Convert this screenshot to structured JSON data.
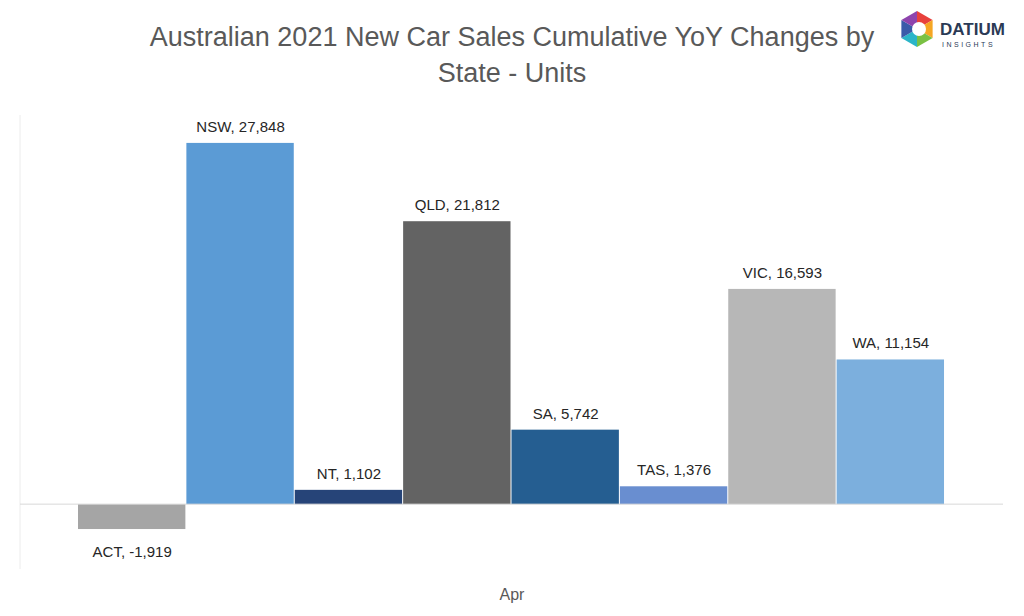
{
  "chart_data": {
    "type": "bar",
    "title": "Australian 2021 New Car Sales Cumulative YoY Changes by State - Units",
    "xlabel": "Apr",
    "annotations": [
      "DATIUM",
      "INSIGHTS"
    ],
    "categories": [
      "ACT",
      "NSW",
      "NT",
      "QLD",
      "SA",
      "TAS",
      "VIC",
      "WA"
    ],
    "values": [
      -1919,
      27848,
      1102,
      21812,
      5742,
      1376,
      16593,
      11154
    ],
    "value_labels": [
      "ACT, -1,919",
      "NSW, 27,848",
      "NT, 1,102",
      "QLD, 21,812",
      "SA, 5,742",
      "TAS, 1,376",
      "VIC, 16,593",
      "WA, 11,154"
    ],
    "colors": [
      "#a5a5a5",
      "#5b9bd5",
      "#264478",
      "#636363",
      "#255e91",
      "#698ed0",
      "#b7b7b7",
      "#7cafdd"
    ],
    "ylim": [
      -5000,
      30000
    ],
    "data_labels": true,
    "tick_labels": false,
    "grid": false
  }
}
